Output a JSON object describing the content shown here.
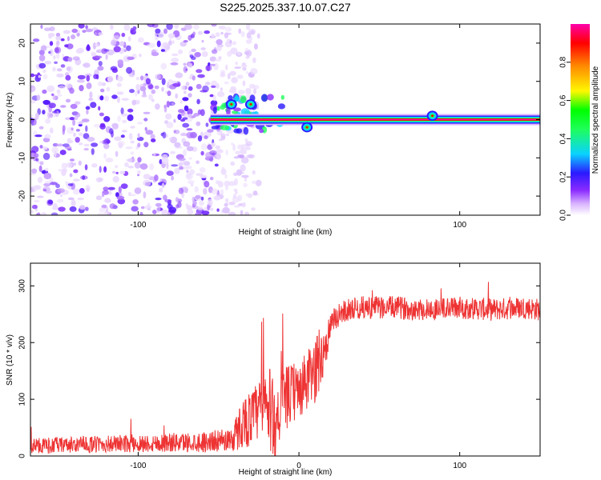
{
  "figure_title": "S225.2025.337.10.07.C27",
  "chart_data": [
    {
      "type": "heatmap",
      "title": "S225.2025.337.10.07.C27",
      "xlabel": "Height of straight line (km)",
      "ylabel": "Frequency (Hz)",
      "xlim": [
        -167,
        150
      ],
      "ylim": [
        -25,
        25
      ],
      "xticks": [
        -100,
        0,
        100
      ],
      "yticks": [
        -20,
        -10,
        0,
        10,
        20
      ],
      "colorbar": {
        "label": "Normalized spectral amplitude",
        "range": [
          0,
          1
        ],
        "ticks": [
          "0.0",
          "0.2",
          "0.4",
          "0.6",
          "0.8"
        ],
        "colors": [
          "#ffffff",
          "#d9b3ff",
          "#8b2cff",
          "#2b19ff",
          "#0ad2ff",
          "#1eff5a",
          "#00ff00",
          "#fff700",
          "#ff8a00",
          "#ff0000",
          "#ff00aa"
        ]
      },
      "line_frequency_hz": 0,
      "line_start_km": -55,
      "noise_region_km": [
        -167,
        -40
      ],
      "bumps": [
        {
          "x": 83,
          "y": 1
        },
        {
          "x": 5,
          "y": -2
        },
        {
          "x": -30,
          "y": 4
        },
        {
          "x": -42,
          "y": 4
        }
      ]
    },
    {
      "type": "line",
      "xlabel": "Height of straight line (km)",
      "ylabel": "SNR (10 * v/v)",
      "xlim": [
        -167,
        150
      ],
      "ylim": [
        0,
        340
      ],
      "xticks": [
        -100,
        0,
        100
      ],
      "yticks": [
        0,
        100,
        200,
        300
      ],
      "color": "#ee3333",
      "series": [
        {
          "name": "SNR",
          "x": [
            -167,
            -100,
            -60,
            -45,
            -40,
            -35,
            -30,
            -25,
            -20,
            -15,
            -10,
            -5,
            0,
            5,
            10,
            15,
            20,
            25,
            30,
            40,
            60,
            80,
            100,
            120,
            140,
            150
          ],
          "values": [
            18,
            22,
            25,
            28,
            35,
            60,
            65,
            80,
            90,
            60,
            95,
            110,
            115,
            130,
            150,
            180,
            230,
            250,
            258,
            262,
            262,
            258,
            262,
            258,
            262,
            258
          ],
          "noise_amplitude": [
            14,
            16,
            18,
            20,
            30,
            45,
            50,
            55,
            80,
            70,
            55,
            55,
            50,
            55,
            60,
            45,
            25,
            20,
            20,
            20,
            20,
            20,
            20,
            20,
            20,
            20
          ]
        }
      ]
    }
  ]
}
